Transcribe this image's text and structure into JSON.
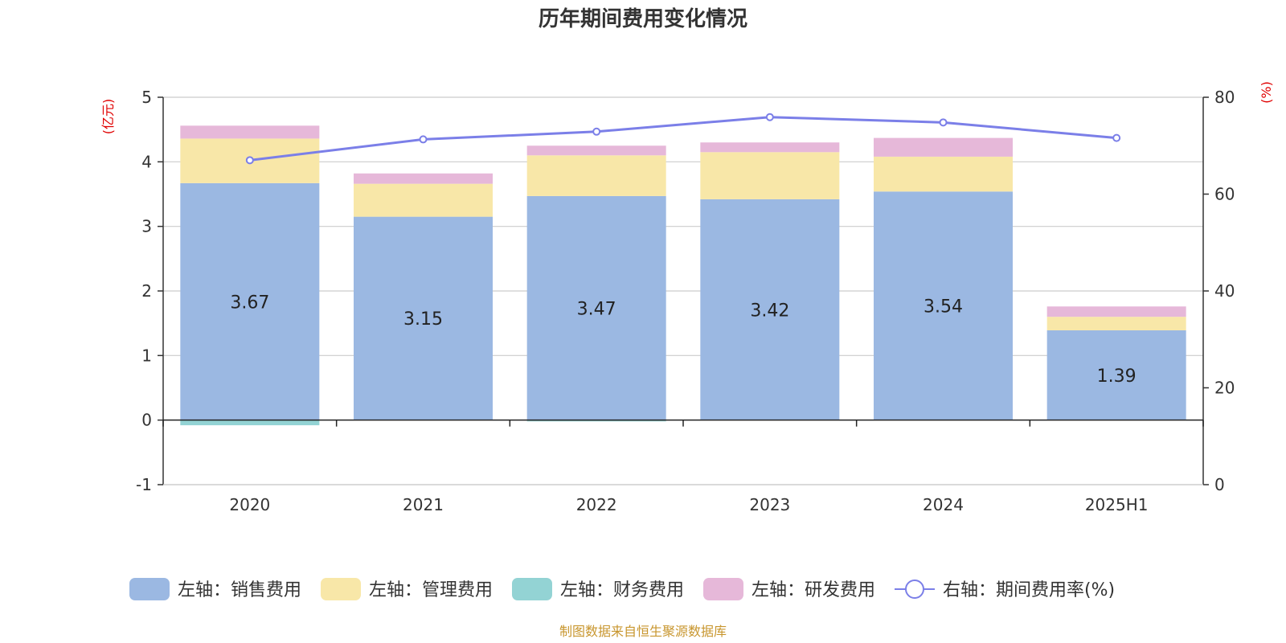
{
  "chart_data": {
    "type": "bar",
    "title": "历年期间费用变化情况",
    "categories": [
      "2020",
      "2021",
      "2022",
      "2023",
      "2024",
      "2025H1"
    ],
    "left_axis": {
      "unit_label": "(亿元)",
      "ylim": [
        -1,
        5
      ],
      "ticks": [
        -1,
        0,
        1,
        2,
        3,
        4,
        5
      ]
    },
    "right_axis": {
      "unit_label": "(%)",
      "ylim": [
        0,
        80
      ],
      "ticks": [
        0,
        20,
        40,
        60,
        80
      ]
    },
    "stacked": true,
    "series": [
      {
        "name": "左轴：销售费用",
        "axis": "left",
        "type": "bar",
        "color": "#9bb8e2",
        "values": [
          3.67,
          3.15,
          3.47,
          3.42,
          3.54,
          1.39
        ],
        "show_labels": true
      },
      {
        "name": "左轴：管理费用",
        "axis": "left",
        "type": "bar",
        "color": "#f8e7a8",
        "values": [
          0.69,
          0.51,
          0.63,
          0.73,
          0.54,
          0.21
        ]
      },
      {
        "name": "左轴：财务费用",
        "axis": "left",
        "type": "bar",
        "color": "#93d3d4",
        "values": [
          -0.08,
          0.0,
          -0.02,
          0.0,
          0.0,
          0.0
        ]
      },
      {
        "name": "左轴：研发费用",
        "axis": "left",
        "type": "bar",
        "color": "#e6b8d9",
        "values": [
          0.2,
          0.16,
          0.15,
          0.15,
          0.29,
          0.16
        ]
      },
      {
        "name": "右轴：期间费用率(%)",
        "axis": "right",
        "type": "line",
        "color": "#7b7fe8",
        "values": [
          67.0,
          71.3,
          72.9,
          75.9,
          74.8,
          71.6
        ]
      }
    ],
    "legend_position": "bottom",
    "grid": true
  },
  "footer": {
    "source": "制图数据来自恒生聚源数据库"
  }
}
